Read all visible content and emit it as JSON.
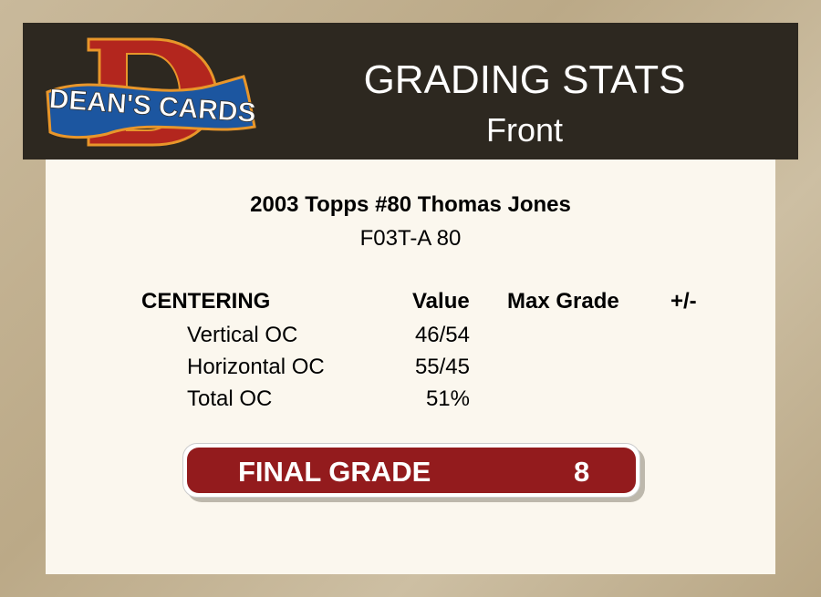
{
  "header": {
    "logo_text": "DEAN'S CARDS",
    "title": "GRADING STATS",
    "subtitle": "Front",
    "colors": {
      "header_bg": "#2d2820",
      "logo_red": "#b3261e",
      "logo_blue": "#1c56a0",
      "logo_orange": "#e8962a"
    }
  },
  "card": {
    "name": "2003 Topps #80 Thomas Jones",
    "code": "F03T-A 80"
  },
  "table": {
    "section": "CENTERING",
    "columns": [
      "Value",
      "Max Grade",
      "+/-"
    ],
    "rows": [
      {
        "label": "Vertical OC",
        "value": "46/54"
      },
      {
        "label": "Horizontal OC",
        "value": "55/45"
      },
      {
        "label": "Total OC",
        "value": "51%"
      }
    ]
  },
  "final_grade": {
    "label": "FINAL GRADE",
    "value": "8",
    "color": "#931b1d"
  }
}
